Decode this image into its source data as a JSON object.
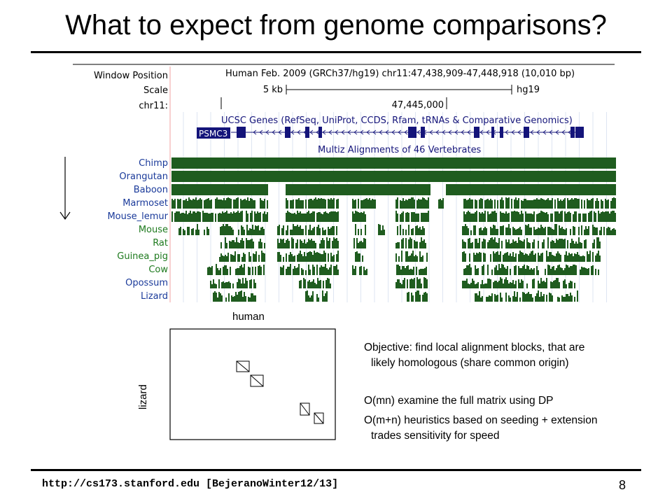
{
  "slide": {
    "title": "What to expect from genome comparisons?",
    "footer_url": "http://cs173.stanford.edu [BejeranoWinter12/13]",
    "page_number": "8"
  },
  "browser": {
    "row_labels": [
      "Window Position",
      "Scale",
      "chr11:"
    ],
    "window_position": "Human Feb. 2009 (GRCh37/hg19)   chr11:47,438,909-47,448,918 (10,010 bp)",
    "scale_text": "5 kb",
    "assembly": "hg19",
    "coordinate": "47,445,000",
    "genes_track_title": "UCSC Genes (RefSeq, UniProt, CCDS, Rfam, tRNAs & Comparative Genomics)",
    "gene_name": "PSMC3",
    "multiz_title": "Multiz Alignments of 46 Vertebrates",
    "species": [
      {
        "name": "Chimp",
        "color": "#1a3a9a"
      },
      {
        "name": "Orangutan",
        "color": "#1a3a9a"
      },
      {
        "name": "Baboon",
        "color": "#1a3a9a"
      },
      {
        "name": "Marmoset",
        "color": "#1a3a9a"
      },
      {
        "name": "Mouse_lemur",
        "color": "#1a3a9a"
      },
      {
        "name": "Mouse",
        "color": "#1e7a1e"
      },
      {
        "name": "Rat",
        "color": "#1e7a1e"
      },
      {
        "name": "Guinea_pig",
        "color": "#1e7a1e"
      },
      {
        "name": "Cow",
        "color": "#1e7a1e"
      },
      {
        "name": "Opossum",
        "color": "#1a3a9a"
      },
      {
        "name": "Lizard",
        "color": "#1a3a9a"
      }
    ],
    "colors": {
      "conservation": "#1f5c1f",
      "gene": "#14147a",
      "label": "#1a3a9a"
    }
  },
  "dotplot": {
    "x_label": "human",
    "y_label": "lizard"
  },
  "notes": {
    "line1a": "Objective: find local alignment blocks, that are",
    "line1b": "likely homologous (share common origin)",
    "line2": "O(mn) examine the full matrix using DP",
    "line3a": "O(m+n) heuristics based on seeding + extension",
    "line3b": "trades sensitivity for speed"
  }
}
